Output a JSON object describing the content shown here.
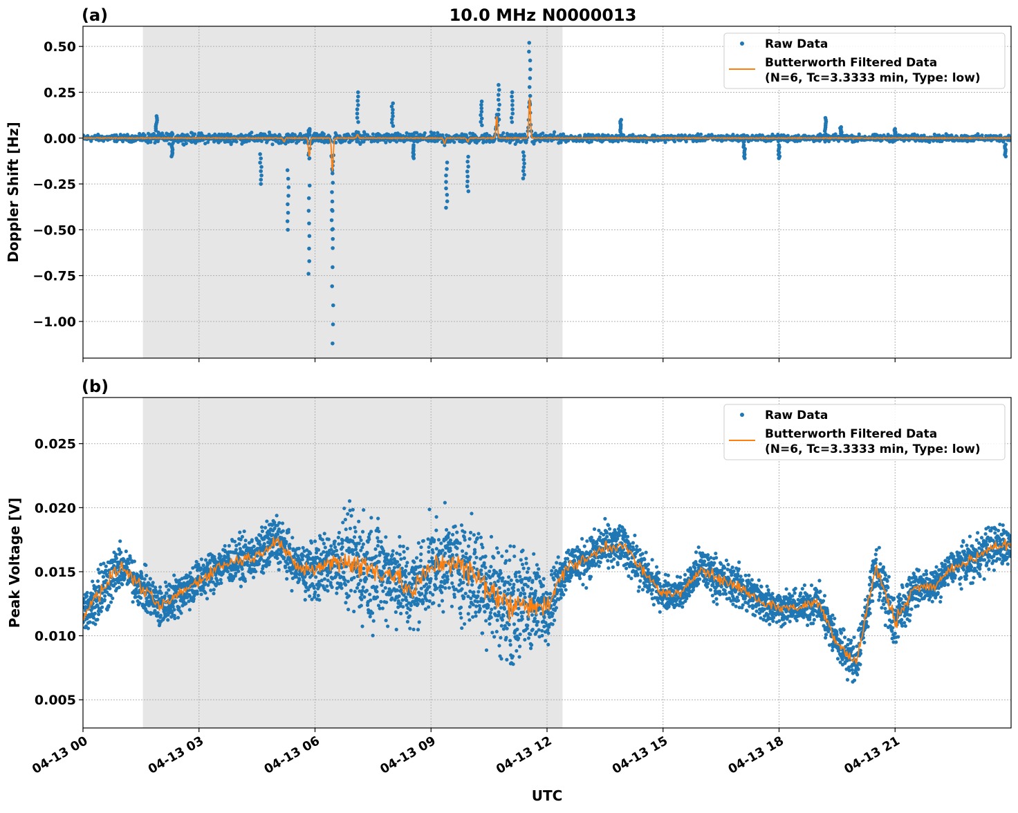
{
  "figure_title": "10.0 MHz N0000013",
  "chart_data": [
    {
      "type": "scatter",
      "panel_label": "(a)",
      "title": "10.0 MHz N0000013",
      "xlabel": "",
      "ylabel": "Doppler Shift [Hz]",
      "xlim_hours": [
        0,
        24
      ],
      "ylim": [
        -1.2,
        0.61
      ],
      "yticks": [
        0.5,
        0.25,
        0.0,
        -0.25,
        -0.5,
        -0.75,
        -1.0
      ],
      "ytick_labels": [
        "0.50",
        "0.25",
        "0.00",
        "−0.25",
        "−0.50",
        "−0.75",
        "−1.00"
      ],
      "grid": true,
      "legend_position": "top-right",
      "shaded_region_hours": [
        1.55,
        12.4
      ],
      "series": [
        {
          "name": "Raw Data",
          "style": "points",
          "color": "#1f77b4",
          "noise_halfwidth": 0.03,
          "spikes": [
            [
              1.9,
              0.12
            ],
            [
              2.3,
              -0.1
            ],
            [
              4.6,
              -0.25
            ],
            [
              5.3,
              -0.5
            ],
            [
              5.85,
              -0.74
            ],
            [
              5.85,
              0.05
            ],
            [
              6.45,
              -1.12
            ],
            [
              6.45,
              -0.55
            ],
            [
              7.1,
              0.25
            ],
            [
              8.0,
              0.19
            ],
            [
              8.55,
              -0.11
            ],
            [
              9.4,
              -0.38
            ],
            [
              9.95,
              -0.29
            ],
            [
              10.3,
              0.2
            ],
            [
              10.75,
              0.29
            ],
            [
              11.1,
              0.25
            ],
            [
              11.4,
              -0.22
            ],
            [
              11.55,
              0.52
            ],
            [
              13.9,
              0.1
            ],
            [
              17.1,
              -0.11
            ],
            [
              18.0,
              -0.11
            ],
            [
              19.2,
              0.11
            ],
            [
              19.6,
              0.06
            ],
            [
              21.0,
              0.05
            ],
            [
              23.85,
              -0.1
            ]
          ]
        },
        {
          "name": "Butterworth Filtered Data\n(N=6, Tc=3.3333 min, Type: low)",
          "style": "line",
          "color": "#ff7f0e",
          "events": [
            [
              5.2,
              -0.02
            ],
            [
              5.85,
              -0.1
            ],
            [
              6.45,
              -0.18
            ],
            [
              7.1,
              0.02
            ],
            [
              9.35,
              -0.03
            ],
            [
              9.95,
              -0.02
            ],
            [
              10.7,
              0.12
            ],
            [
              11.55,
              0.22
            ]
          ]
        }
      ]
    },
    {
      "type": "scatter",
      "panel_label": "(b)",
      "xlabel": "UTC",
      "ylabel": "Peak Voltage [V]",
      "xlim_hours": [
        0,
        24
      ],
      "ylim": [
        0.0028,
        0.0286
      ],
      "yticks": [
        0.025,
        0.02,
        0.015,
        0.01,
        0.005
      ],
      "ytick_labels": [
        "0.025",
        "0.020",
        "0.015",
        "0.010",
        "0.005"
      ],
      "grid": true,
      "legend_position": "top-right",
      "shaded_region_hours": [
        1.55,
        12.4
      ],
      "x_hours": [
        0,
        0.5,
        1,
        1.5,
        2,
        2.5,
        3,
        3.5,
        4,
        4.5,
        5,
        5.5,
        6,
        6.5,
        7,
        7.5,
        8,
        8.5,
        9,
        9.5,
        10,
        10.5,
        11,
        11.5,
        12,
        12.5,
        13,
        13.5,
        14,
        14.5,
        15,
        15.5,
        16,
        16.5,
        17,
        17.5,
        18,
        18.5,
        19,
        19.5,
        20,
        20.5,
        21,
        21.5,
        22,
        22.5,
        23,
        23.5,
        24
      ],
      "series": [
        {
          "name": "Raw Data",
          "style": "points",
          "color": "#1f77b4",
          "spread": [
            0.002,
            0.003,
            0.002,
            0.002,
            0.002,
            0.002,
            0.002,
            0.002,
            0.002,
            0.002,
            0.0025,
            0.002,
            0.003,
            0.003,
            0.005,
            0.005,
            0.004,
            0.004,
            0.004,
            0.004,
            0.005,
            0.005,
            0.005,
            0.005,
            0.003,
            0.002,
            0.002,
            0.002,
            0.002,
            0.002,
            0.0015,
            0.0015,
            0.002,
            0.002,
            0.002,
            0.002,
            0.0015,
            0.0015,
            0.002,
            0.002,
            0.002,
            0.002,
            0.003,
            0.0015,
            0.0015,
            0.0015,
            0.002,
            0.002,
            0.002
          ]
        },
        {
          "name": "Butterworth Filtered Data\n(N=6, Tc=3.3333 min, Type: low)",
          "style": "line",
          "color": "#ff7f0e",
          "values": [
            0.0116,
            0.0138,
            0.0154,
            0.0138,
            0.0122,
            0.0133,
            0.0143,
            0.0154,
            0.0159,
            0.0162,
            0.0176,
            0.0154,
            0.0151,
            0.0159,
            0.0157,
            0.0151,
            0.0149,
            0.0133,
            0.0154,
            0.0159,
            0.0149,
            0.0138,
            0.0122,
            0.0127,
            0.0122,
            0.0154,
            0.0159,
            0.017,
            0.017,
            0.0149,
            0.0133,
            0.0133,
            0.0154,
            0.0143,
            0.0138,
            0.0127,
            0.0122,
            0.0122,
            0.0127,
            0.0095,
            0.0079,
            0.0154,
            0.0111,
            0.0138,
            0.0138,
            0.0154,
            0.0159,
            0.017,
            0.017
          ]
        }
      ]
    }
  ],
  "xticks_hours": [
    0,
    3,
    6,
    9,
    12,
    15,
    18,
    21
  ],
  "xtick_labels": [
    "04-13 00",
    "04-13 03",
    "04-13 06",
    "04-13 09",
    "04-13 12",
    "04-13 15",
    "04-13 18",
    "04-13 21"
  ],
  "legend": {
    "raw": "Raw Data",
    "filtered_line1": "Butterworth Filtered Data",
    "filtered_line2": "(N=6, Tc=3.3333 min, Type: low)"
  },
  "colors": {
    "raw": "#1f77b4",
    "filtered": "#ff7f0e",
    "shade": "#e6e6e6"
  }
}
